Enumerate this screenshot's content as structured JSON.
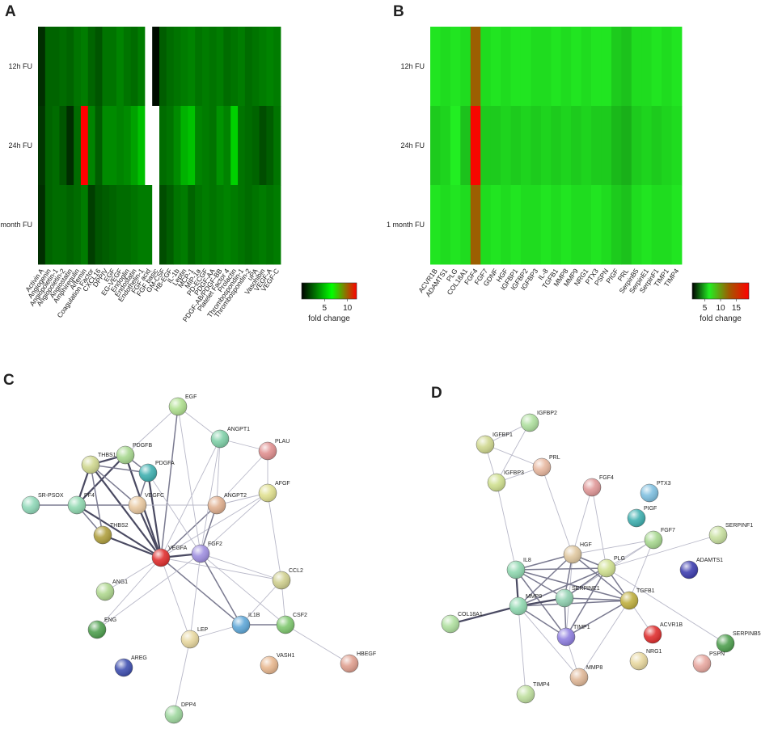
{
  "panel_labels": [
    "A",
    "B",
    "C",
    "D"
  ],
  "chart_data": [
    {
      "type": "heatmap",
      "rows": [
        "12h FU",
        "24h FU",
        "1 month FU"
      ],
      "categories": [
        "Activin A",
        "Angiogenin",
        "Angiopoietin-1",
        "Angiopoietin-2",
        "Angiostatin",
        "Amphiregulin",
        "Artemin",
        "Coagulation Factor",
        "CXCL16",
        "DPPIV",
        "EGF",
        "EG-VEGF",
        "Endoglin",
        "Endostatin",
        "Endothelin-1",
        "FGF acid",
        "FGF basic",
        "GM-CSF",
        "HB-EGF",
        "IL-1b",
        "Leptin",
        "MCP-1",
        "MIP-1a",
        "PD-ECGF",
        "PDGF-AA",
        "PDGF-AB/PDGF-BB",
        "Platelet Factor 4",
        "Prolactin",
        "Thrombospondin-1",
        "Thrombospondin-2",
        "uPA",
        "Vasohibin",
        "VEGF-A",
        "VEGF-C"
      ],
      "values": [
        [
          1.2,
          2.6,
          2.6,
          2.8,
          2.6,
          3,
          3.2,
          2.6,
          2.2,
          3,
          3,
          3.4,
          3,
          2.8,
          3.2,
          null,
          0.3,
          2.4,
          2.8,
          3,
          3.2,
          3.4,
          3,
          3.2,
          3,
          3.2,
          2.8,
          3,
          3.2,
          2.8,
          3,
          3.2,
          3.4,
          3.2
        ],
        [
          1.4,
          2.6,
          2.8,
          2.2,
          1.2,
          2.8,
          12,
          3.4,
          2.4,
          3.6,
          3.6,
          3.4,
          3.6,
          4.2,
          5,
          null,
          null,
          2.8,
          3,
          3.6,
          4.6,
          5,
          3.4,
          3.2,
          3,
          3.8,
          3.4,
          5.4,
          3,
          2.8,
          2.6,
          2,
          2.4,
          3
        ],
        [
          1.2,
          2.6,
          2.8,
          2.8,
          2.6,
          2.8,
          3.2,
          1.6,
          2.2,
          2.4,
          2.6,
          2.8,
          2.8,
          3,
          3.2,
          3.2,
          null,
          2,
          2.4,
          3,
          3.2,
          2.6,
          3,
          3.2,
          3,
          3.2,
          3.4,
          3.2,
          3,
          2.8,
          3,
          3.2,
          3,
          3.2
        ]
      ],
      "clim": [
        0,
        12
      ],
      "colorscale": [
        [
          0,
          "#000000"
        ],
        [
          0.55,
          "#00ff00"
        ],
        [
          1,
          "#ff0000"
        ]
      ],
      "colorbar_ticks": [
        5,
        10
      ],
      "colorbar_label": "fold change"
    },
    {
      "type": "heatmap",
      "rows": [
        "12h FU",
        "24h FU",
        "1 month FU"
      ],
      "categories": [
        "ACVR1B",
        "ADAMTS1",
        "PLG",
        "COL18A1",
        "FGF4",
        "FGF7",
        "GDNF",
        "HGF",
        "IGFBP1",
        "IGFBP2",
        "IGFBP3",
        "IL-8",
        "TGFB1",
        "MMP8",
        "MMP9",
        "NRG1",
        "PTX3",
        "PSPN",
        "PIGF",
        "PRL",
        "SerpinB5",
        "SerpinE1",
        "SerpinF1",
        "TIMP1",
        "TIMP4"
      ],
      "values": [
        [
          6.2,
          6,
          6.2,
          6,
          12.5,
          6,
          6.2,
          6,
          6.2,
          6.2,
          6,
          6,
          6.2,
          6,
          6.2,
          6,
          6.2,
          6.2,
          5.6,
          5.4,
          6,
          6,
          6.2,
          6,
          6.2
        ],
        [
          5.6,
          5.8,
          6.4,
          5.4,
          18.5,
          5.6,
          5.6,
          5.8,
          5.6,
          5.8,
          5.6,
          5.8,
          5.6,
          5.8,
          5.6,
          5.8,
          5.6,
          5.6,
          5.2,
          5,
          5.6,
          5.8,
          5.6,
          5.8,
          6
        ],
        [
          6.2,
          6,
          6.2,
          6,
          12.5,
          6,
          6.2,
          6,
          6.2,
          6,
          6,
          6.2,
          6,
          6.2,
          6,
          6,
          6.2,
          6,
          5.6,
          5.4,
          6,
          6.2,
          6,
          6,
          6.2
        ]
      ],
      "clim": [
        1,
        19
      ],
      "colorscale": [
        [
          0,
          "#000000"
        ],
        [
          0.3,
          "#22ee22"
        ],
        [
          0.65,
          "#a05a00"
        ],
        [
          1,
          "#ff0000"
        ]
      ],
      "colorbar_ticks": [
        5,
        10,
        15
      ],
      "colorbar_label": "fold change"
    }
  ],
  "networks": [
    {
      "nodes": [
        {
          "label": "EGF"
        },
        {
          "label": "ANGPT1"
        },
        {
          "label": "PLAU"
        },
        {
          "label": "PDGFB"
        },
        {
          "label": "THBS1"
        },
        {
          "label": "PDGFA"
        },
        {
          "label": "SR-PSOX"
        },
        {
          "label": "PF4"
        },
        {
          "label": "VEGFC"
        },
        {
          "label": "ANGPT2"
        },
        {
          "label": "AFGF"
        },
        {
          "label": "THBS2"
        },
        {
          "label": "VEGFA"
        },
        {
          "label": "FGF2"
        },
        {
          "label": "CCL2"
        },
        {
          "label": "ANG1"
        },
        {
          "label": "ENG"
        },
        {
          "label": "IL1B"
        },
        {
          "label": "CSF2"
        },
        {
          "label": "LEP"
        },
        {
          "label": "AREG"
        },
        {
          "label": "VASH1"
        },
        {
          "label": "HBEGF"
        },
        {
          "label": "DPP4"
        }
      ]
    },
    {
      "nodes": [
        {
          "label": "IGFBP2"
        },
        {
          "label": "IGFBP1"
        },
        {
          "label": "PRL"
        },
        {
          "label": "IGFBP3"
        },
        {
          "label": "FGF4"
        },
        {
          "label": "PTX3"
        },
        {
          "label": "PIGF"
        },
        {
          "label": "SERPINF1"
        },
        {
          "label": "FGF7"
        },
        {
          "label": "HGF"
        },
        {
          "label": "PLG"
        },
        {
          "label": "ADAMTS1"
        },
        {
          "label": "IL8"
        },
        {
          "label": "SERPINE1"
        },
        {
          "label": "TGFB1"
        },
        {
          "label": "MMP9"
        },
        {
          "label": "ACVR1B"
        },
        {
          "label": "COL18A1"
        },
        {
          "label": "TIMP1"
        },
        {
          "label": "SERPINB5"
        },
        {
          "label": "NRG1"
        },
        {
          "label": "PSPN"
        },
        {
          "label": "MMP8"
        },
        {
          "label": "TIMP4"
        }
      ]
    }
  ]
}
